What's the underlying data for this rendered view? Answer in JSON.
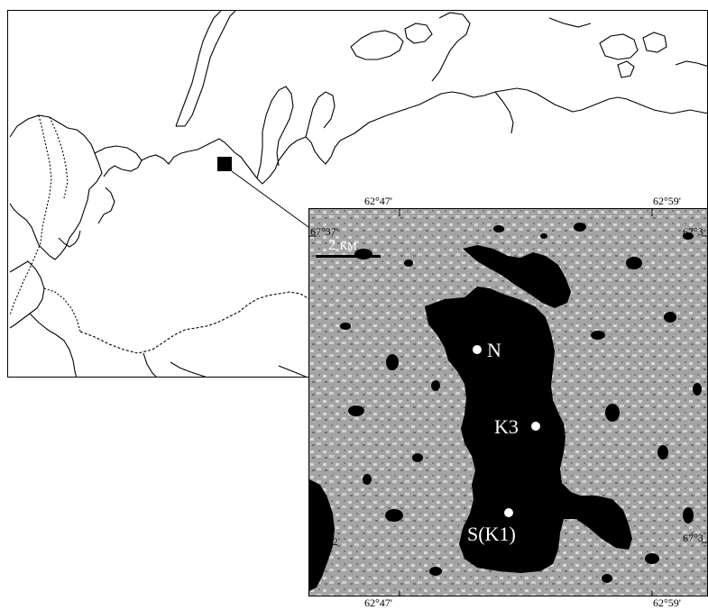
{
  "scale": {
    "label": "2 км"
  },
  "coords": {
    "lon_top_left": "62°47'",
    "lon_top_right": "62°59'",
    "lon_bottom_left": "62°47'",
    "lon_bottom_right": "62°59'",
    "lat_top_left": "67°37'",
    "lat_top_right": "67°3",
    "lat_bottom_left": "67°32'",
    "lat_bottom_right": "67°3"
  },
  "sites": [
    {
      "id": "N",
      "label": "N"
    },
    {
      "id": "K3",
      "label": "K3"
    },
    {
      "id": "S",
      "label": "S(K1)"
    }
  ],
  "colors": {
    "water": "#000000",
    "tundra": "#9a9a9a",
    "line": "#000000",
    "paper": "#ffffff"
  }
}
